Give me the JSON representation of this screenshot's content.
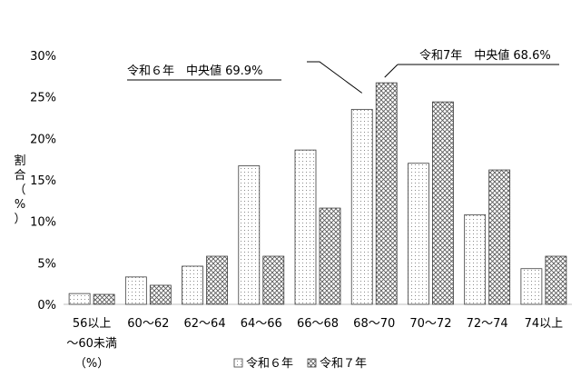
{
  "chart_data": {
    "type": "bar",
    "categories": [
      [
        "56以上",
        "～60未満",
        "（%）"
      ],
      [
        "60～62"
      ],
      [
        "62～64"
      ],
      [
        "64～66"
      ],
      [
        "66～68"
      ],
      [
        "68～70"
      ],
      [
        "70～72"
      ],
      [
        "72～74"
      ],
      [
        "74以上"
      ]
    ],
    "series": [
      {
        "name": "令和６年",
        "values": [
          1.3,
          3.3,
          4.6,
          16.7,
          18.6,
          23.5,
          17.0,
          10.8,
          4.3
        ]
      },
      {
        "name": "令和７年",
        "values": [
          1.2,
          2.3,
          5.8,
          5.8,
          11.6,
          26.7,
          24.4,
          16.2,
          5.8
        ]
      }
    ],
    "ylabel": [
      "割",
      "合",
      "（",
      "%",
      "）"
    ],
    "ylim": [
      0,
      30
    ],
    "yticks": [
      0,
      5,
      10,
      15,
      20,
      25,
      30
    ],
    "ytick_labels": [
      "0%",
      "5%",
      "10%",
      "15%",
      "20%",
      "25%",
      "30%"
    ],
    "annotations": [
      {
        "text": "令和６年　中央値 69.9%",
        "series": "令和６年",
        "category_index": 5
      },
      {
        "text": "令和7年　中央値 68.6%",
        "series": "令和７年",
        "category_index": 5
      }
    ],
    "legend": "bottom",
    "grid": false,
    "colors": {
      "series1_pattern": "#9a9a9a",
      "series2_pattern": "#6a6a6a",
      "bar_stroke": "#3c3c3c",
      "axis": "#bfbfbf"
    }
  }
}
